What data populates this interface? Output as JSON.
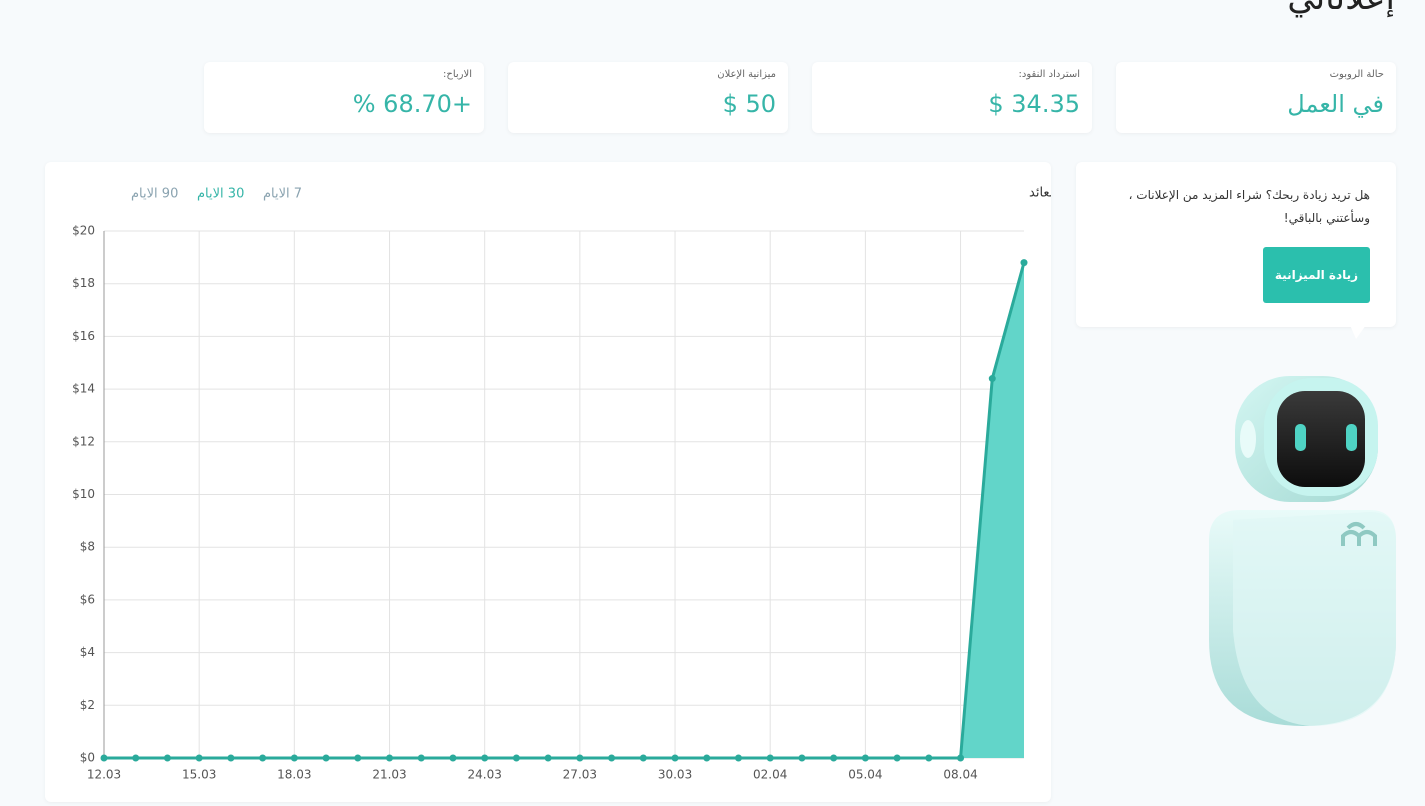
{
  "header": {
    "title": "إعلاناتي"
  },
  "stats": [
    {
      "label": "حالة الروبوت",
      "value": "في العمل"
    },
    {
      "label": "استرداد النقود:",
      "value": "$ 34.35"
    },
    {
      "label": "ميزانية الإعلان",
      "value": "$ 50"
    },
    {
      "label": "الارباح:",
      "value": "% 68.70+"
    }
  ],
  "chart_data": {
    "type": "area",
    "title": "مخطط العائد",
    "range_options": [
      "7 الايام",
      "30 الايام",
      "90 الايام"
    ],
    "selected_range": 1,
    "categories": [
      "12.03",
      null,
      null,
      "15.03",
      null,
      null,
      "18.03",
      null,
      null,
      "21.03",
      null,
      null,
      "24.03",
      null,
      null,
      "27.03",
      null,
      null,
      "30.03",
      null,
      null,
      "02.04",
      null,
      null,
      "05.04",
      null,
      null,
      "08.04",
      null,
      null
    ],
    "values": [
      0,
      0,
      0,
      0,
      0,
      0,
      0,
      0,
      0,
      0,
      0,
      0,
      0,
      0,
      0,
      0,
      0,
      0,
      0,
      0,
      0,
      0,
      0,
      0,
      0,
      0,
      0,
      0,
      14.4,
      18.8
    ],
    "color": "#2aaa9b",
    "fill": "#62d5c9",
    "ylim": [
      0,
      20
    ],
    "yticks": [
      {
        "value": 0,
        "label": "$0"
      },
      {
        "value": 2,
        "label": "$2"
      },
      {
        "value": 4,
        "label": "$4"
      },
      {
        "value": 6,
        "label": "$6"
      },
      {
        "value": 8,
        "label": "$8"
      },
      {
        "value": 10,
        "label": "$10"
      },
      {
        "value": 12,
        "label": "$12"
      },
      {
        "value": 14,
        "label": "$14"
      },
      {
        "value": 16,
        "label": "$16"
      },
      {
        "value": 18,
        "label": "$18"
      },
      {
        "value": 20,
        "label": "$20"
      }
    ],
    "grid": true
  },
  "promo": {
    "text": "هل تريد زيادة ربحك؟ شراء المزيد من الإعلانات ، وسأعتني بالباقي!",
    "button": "زيادة الميزانية"
  }
}
